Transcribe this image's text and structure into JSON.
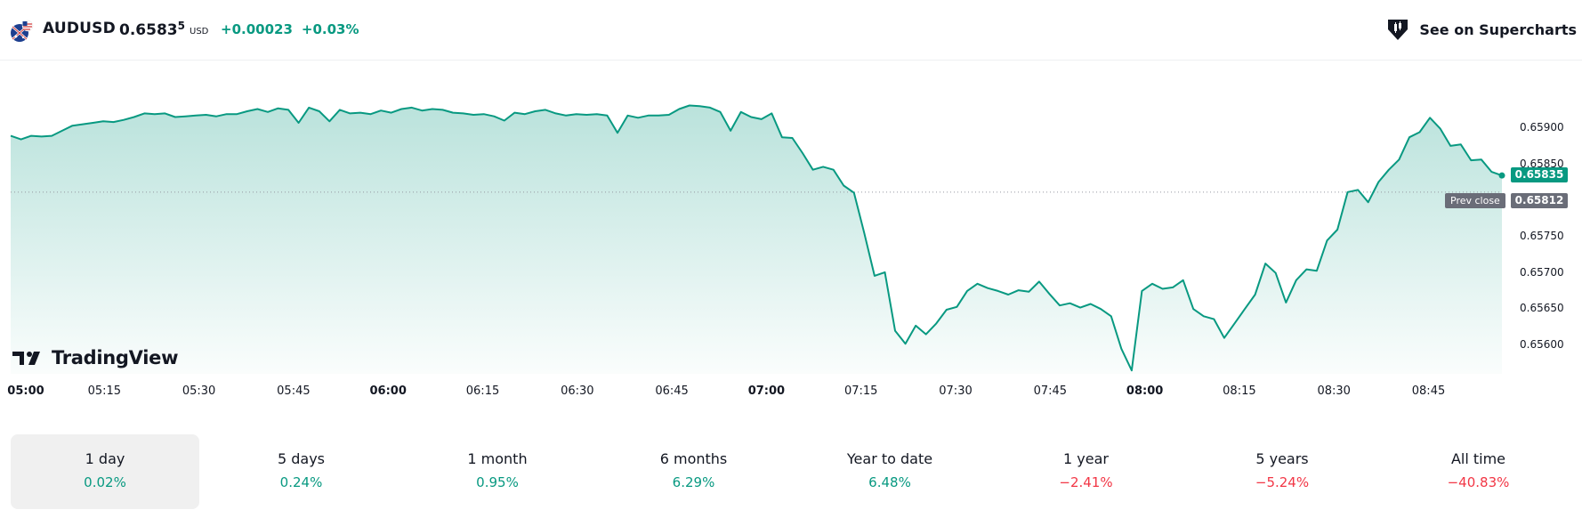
{
  "header": {
    "symbol": "AUDUSD",
    "price_main": "0.6583",
    "price_fraction": "5",
    "currency": "USD",
    "change_abs": "+0.00023",
    "change_pct": "+0.03%",
    "flag_icon": "australia-us-flag-icon",
    "supercharts_label": "See on Supercharts"
  },
  "branding": {
    "logo_text": "TradingView"
  },
  "price_axis": {
    "ticks": [
      "0.65900",
      "0.65850",
      "0.65800",
      "0.65750",
      "0.65700",
      "0.65650",
      "0.65600"
    ],
    "last_price": "0.65835",
    "prev_close": "0.65812",
    "prev_close_label": "Prev close"
  },
  "time_axis": {
    "ticks": [
      {
        "label": "05:00",
        "bold": true
      },
      {
        "label": "05:15",
        "bold": false
      },
      {
        "label": "05:30",
        "bold": false
      },
      {
        "label": "05:45",
        "bold": false
      },
      {
        "label": "06:00",
        "bold": true
      },
      {
        "label": "06:15",
        "bold": false
      },
      {
        "label": "06:30",
        "bold": false
      },
      {
        "label": "06:45",
        "bold": false
      },
      {
        "label": "07:00",
        "bold": true
      },
      {
        "label": "07:15",
        "bold": false
      },
      {
        "label": "07:30",
        "bold": false
      },
      {
        "label": "07:45",
        "bold": false
      },
      {
        "label": "08:00",
        "bold": true
      },
      {
        "label": "08:15",
        "bold": false
      },
      {
        "label": "08:30",
        "bold": false
      },
      {
        "label": "08:45",
        "bold": false
      }
    ]
  },
  "colors": {
    "accent": "#089981",
    "line": "#089981",
    "negative": "#f23645",
    "prev_close": "#6a6d78"
  },
  "ranges": [
    {
      "label": "1 day",
      "value": "0.02%",
      "positive": true,
      "active": true
    },
    {
      "label": "5 days",
      "value": "0.24%",
      "positive": true,
      "active": false
    },
    {
      "label": "1 month",
      "value": "0.95%",
      "positive": true,
      "active": false
    },
    {
      "label": "6 months",
      "value": "6.29%",
      "positive": true,
      "active": false
    },
    {
      "label": "Year to date",
      "value": "6.48%",
      "positive": true,
      "active": false
    },
    {
      "label": "1 year",
      "value": "−2.41%",
      "positive": false,
      "active": false
    },
    {
      "label": "5 years",
      "value": "−5.24%",
      "positive": false,
      "active": false
    },
    {
      "label": "All time",
      "value": "−40.83%",
      "positive": false,
      "active": false
    }
  ],
  "chart_data": {
    "type": "area",
    "ylim": [
      0.6558,
      0.6594
    ],
    "prev_close": 0.65812,
    "last": 0.65835,
    "x_start": "05:00",
    "x_end": "08:54",
    "series": [
      {
        "values": [
          0.6589,
          0.65885,
          0.6589,
          0.65889,
          0.6589,
          0.65897,
          0.65904,
          0.65906,
          0.65908,
          0.6591,
          0.65909,
          0.65912,
          0.65916,
          0.65921,
          0.6592,
          0.65921,
          0.65916,
          0.65917,
          0.65918,
          0.65919,
          0.65917,
          0.6592,
          0.6592,
          0.65924,
          0.65927,
          0.65923,
          0.65928,
          0.65926,
          0.65908,
          0.65929,
          0.65924,
          0.6591,
          0.65926,
          0.65921,
          0.65922,
          0.6592,
          0.65925,
          0.65922,
          0.65927,
          0.65929,
          0.65925,
          0.65927,
          0.65926,
          0.65922,
          0.65921,
          0.65919,
          0.6592,
          0.65917,
          0.65911,
          0.65922,
          0.6592,
          0.65924,
          0.65926,
          0.65921,
          0.65918,
          0.6592,
          0.65919,
          0.6592,
          0.65918,
          0.65894,
          0.65918,
          0.65915,
          0.65918,
          0.65918,
          0.65919,
          0.65927,
          0.65932,
          0.65931,
          0.65929,
          0.65923,
          0.65897,
          0.65923,
          0.65916,
          0.65913,
          0.65921,
          0.65888,
          0.65887,
          0.65866,
          0.65843,
          0.65847,
          0.65843,
          0.65821,
          0.65811,
          0.65755,
          0.65696,
          0.65701,
          0.6562,
          0.65602,
          0.65627,
          0.65615,
          0.6563,
          0.65649,
          0.65653,
          0.65675,
          0.65685,
          0.65679,
          0.65675,
          0.6567,
          0.65676,
          0.65674,
          0.65688,
          0.65671,
          0.65655,
          0.65658,
          0.65652,
          0.65657,
          0.6565,
          0.6564,
          0.65595,
          0.65565,
          0.65675,
          0.65685,
          0.65678,
          0.6568,
          0.6569,
          0.6565,
          0.6564,
          0.65636,
          0.6561,
          0.6563,
          0.6565,
          0.6567,
          0.65713,
          0.657,
          0.65659,
          0.6569,
          0.65705,
          0.65703,
          0.65745,
          0.6576,
          0.65812,
          0.65815,
          0.65798,
          0.65826,
          0.65843,
          0.65857,
          0.65888,
          0.65895,
          0.65915,
          0.659,
          0.65876,
          0.65878,
          0.65856,
          0.65857,
          0.6584,
          0.65835
        ]
      }
    ]
  }
}
